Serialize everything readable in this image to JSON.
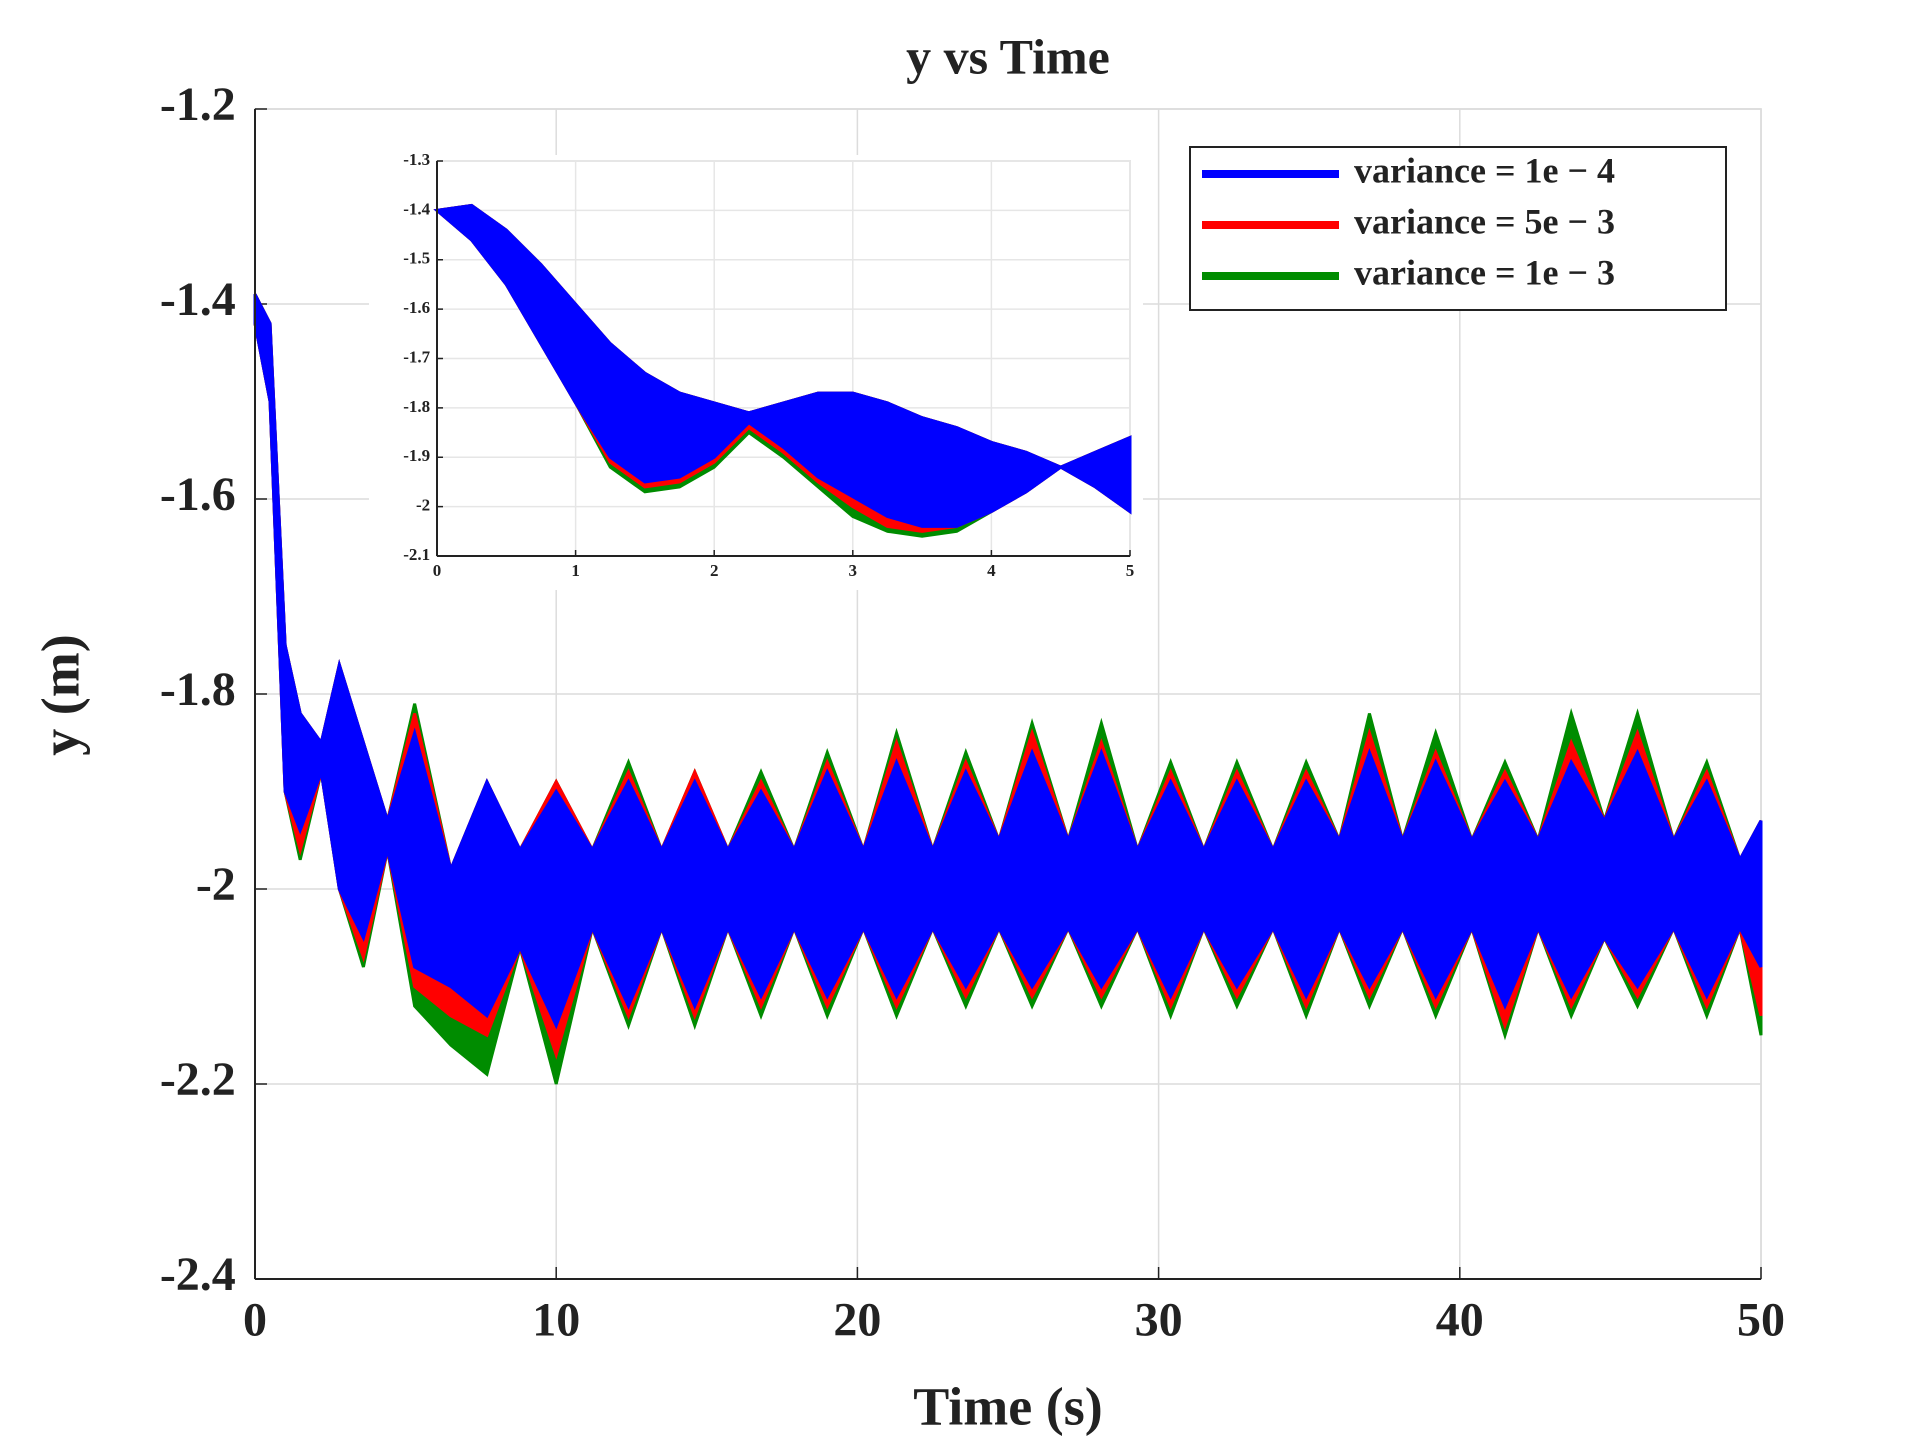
{
  "chart_data": [
    {
      "type": "band",
      "title": "y vs Time",
      "xlabel": "Time (s)",
      "ylabel": "y (m)",
      "xlim": [
        0,
        50
      ],
      "ylim": [
        -2.4,
        -1.2
      ],
      "xticks": [
        0,
        10,
        20,
        30,
        40,
        50
      ],
      "yticks": [
        -2.4,
        -2.2,
        -2,
        -1.8,
        -1.6,
        -1.4,
        -1.2
      ],
      "grid": true,
      "legend": "upper right",
      "x": [
        0,
        0.5,
        1,
        1.5,
        2.2,
        2.8,
        3.6,
        4.4,
        5.3,
        6.5,
        7.7,
        8.8,
        10,
        11.2,
        12.4,
        13.5,
        14.6,
        15.7,
        16.8,
        17.9,
        19,
        20.2,
        21.3,
        22.5,
        23.6,
        24.7,
        25.8,
        27,
        28.1,
        29.3,
        30.4,
        31.5,
        32.6,
        33.8,
        34.9,
        36,
        37,
        38.1,
        39.2,
        40.4,
        41.5,
        42.6,
        43.7,
        44.8,
        45.9,
        47.1,
        48.2,
        49.3,
        50
      ],
      "series": [
        {
          "name": "variance = 1e − 3",
          "color": "#008c00",
          "upper": [
            -1.39,
            -1.42,
            -1.75,
            -1.82,
            -1.85,
            -1.77,
            -1.85,
            -1.93,
            -1.81,
            -1.98,
            -1.89,
            -1.96,
            -1.89,
            -1.96,
            -1.87,
            -1.96,
            -1.88,
            -1.96,
            -1.88,
            -1.96,
            -1.86,
            -1.96,
            -1.84,
            -1.96,
            -1.86,
            -1.95,
            -1.83,
            -1.95,
            -1.83,
            -1.96,
            -1.87,
            -1.96,
            -1.87,
            -1.96,
            -1.87,
            -1.95,
            -1.82,
            -1.95,
            -1.84,
            -1.95,
            -1.87,
            -1.95,
            -1.82,
            -1.93,
            -1.82,
            -1.95,
            -1.87,
            -1.97,
            -1.93
          ],
          "lower": [
            -1.42,
            -1.5,
            -1.9,
            -1.97,
            -1.88,
            -2,
            -2.08,
            -1.96,
            -2.12,
            -2.16,
            -2.19,
            -2.06,
            -2.2,
            -2.04,
            -2.14,
            -2.04,
            -2.14,
            -2.04,
            -2.13,
            -2.04,
            -2.13,
            -2.04,
            -2.13,
            -2.04,
            -2.12,
            -2.04,
            -2.12,
            -2.04,
            -2.12,
            -2.04,
            -2.13,
            -2.04,
            -2.12,
            -2.04,
            -2.13,
            -2.04,
            -2.12,
            -2.04,
            -2.13,
            -2.04,
            -2.15,
            -2.04,
            -2.13,
            -2.05,
            -2.12,
            -2.04,
            -2.13,
            -2.04,
            -2.15
          ]
        },
        {
          "name": "variance = 5e − 3",
          "color": "#ff0000",
          "upper": [
            -1.39,
            -1.42,
            -1.75,
            -1.82,
            -1.85,
            -1.77,
            -1.85,
            -1.93,
            -1.82,
            -1.98,
            -1.89,
            -1.96,
            -1.89,
            -1.96,
            -1.88,
            -1.96,
            -1.88,
            -1.96,
            -1.89,
            -1.96,
            -1.87,
            -1.96,
            -1.85,
            -1.96,
            -1.87,
            -1.95,
            -1.84,
            -1.95,
            -1.85,
            -1.96,
            -1.88,
            -1.96,
            -1.88,
            -1.96,
            -1.88,
            -1.95,
            -1.84,
            -1.95,
            -1.86,
            -1.95,
            -1.88,
            -1.95,
            -1.85,
            -1.93,
            -1.84,
            -1.95,
            -1.88,
            -1.97,
            -1.93
          ],
          "lower": [
            -1.42,
            -1.5,
            -1.9,
            -1.96,
            -1.88,
            -2,
            -2.07,
            -1.96,
            -2.1,
            -2.13,
            -2.15,
            -2.06,
            -2.17,
            -2.04,
            -2.13,
            -2.04,
            -2.13,
            -2.04,
            -2.12,
            -2.04,
            -2.12,
            -2.04,
            -2.12,
            -2.04,
            -2.11,
            -2.04,
            -2.11,
            -2.04,
            -2.11,
            -2.04,
            -2.12,
            -2.04,
            -2.11,
            -2.04,
            -2.12,
            -2.04,
            -2.11,
            -2.04,
            -2.12,
            -2.04,
            -2.14,
            -2.04,
            -2.12,
            -2.05,
            -2.11,
            -2.04,
            -2.12,
            -2.04,
            -2.13
          ]
        },
        {
          "name": "variance = 1e − 4",
          "color": "#0000ff",
          "upper": [
            -1.39,
            -1.42,
            -1.75,
            -1.82,
            -1.85,
            -1.77,
            -1.85,
            -1.93,
            -1.84,
            -1.98,
            -1.89,
            -1.96,
            -1.9,
            -1.96,
            -1.89,
            -1.96,
            -1.89,
            -1.96,
            -1.9,
            -1.96,
            -1.88,
            -1.96,
            -1.87,
            -1.96,
            -1.88,
            -1.95,
            -1.86,
            -1.95,
            -1.86,
            -1.96,
            -1.89,
            -1.96,
            -1.89,
            -1.96,
            -1.89,
            -1.95,
            -1.86,
            -1.95,
            -1.87,
            -1.95,
            -1.89,
            -1.95,
            -1.87,
            -1.93,
            -1.86,
            -1.95,
            -1.89,
            -1.97,
            -1.93
          ],
          "lower": [
            -1.42,
            -1.5,
            -1.9,
            -1.94,
            -1.88,
            -2,
            -2.05,
            -1.96,
            -2.08,
            -2.1,
            -2.13,
            -2.06,
            -2.14,
            -2.04,
            -2.12,
            -2.04,
            -2.12,
            -2.04,
            -2.11,
            -2.04,
            -2.11,
            -2.04,
            -2.11,
            -2.04,
            -2.1,
            -2.04,
            -2.1,
            -2.04,
            -2.1,
            -2.04,
            -2.11,
            -2.04,
            -2.1,
            -2.04,
            -2.11,
            -2.04,
            -2.1,
            -2.04,
            -2.11,
            -2.04,
            -2.12,
            -2.04,
            -2.11,
            -2.05,
            -2.1,
            -2.04,
            -2.11,
            -2.04,
            -2.08
          ]
        }
      ]
    },
    {
      "type": "band",
      "xlim": [
        0,
        5
      ],
      "ylim": [
        -2.1,
        -1.3
      ],
      "xticks": [
        0,
        1,
        2,
        3,
        4,
        5
      ],
      "yticks": [
        -2.1,
        -2,
        -1.9,
        -1.8,
        -1.7,
        -1.6,
        -1.5,
        -1.4,
        -1.3
      ],
      "grid": true,
      "x": [
        0,
        0.25,
        0.5,
        0.75,
        1,
        1.25,
        1.5,
        1.75,
        2,
        2.25,
        2.5,
        2.75,
        3,
        3.25,
        3.5,
        3.75,
        4,
        4.25,
        4.5,
        4.75,
        5
      ],
      "series": [
        {
          "color": "#008c00",
          "upper": [
            -1.4,
            -1.39,
            -1.44,
            -1.51,
            -1.59,
            -1.67,
            -1.73,
            -1.77,
            -1.79,
            -1.81,
            -1.79,
            -1.77,
            -1.77,
            -1.79,
            -1.82,
            -1.84,
            -1.87,
            -1.89,
            -1.92,
            -1.89,
            -1.86
          ],
          "lower": [
            -1.4,
            -1.46,
            -1.55,
            -1.67,
            -1.79,
            -1.92,
            -1.97,
            -1.96,
            -1.92,
            -1.85,
            -1.9,
            -1.96,
            -2.02,
            -2.05,
            -2.06,
            -2.05,
            -2.01,
            -1.97,
            -1.92,
            -1.96,
            -2.01
          ]
        },
        {
          "color": "#ff0000",
          "upper": [
            -1.4,
            -1.39,
            -1.44,
            -1.51,
            -1.59,
            -1.67,
            -1.73,
            -1.77,
            -1.79,
            -1.81,
            -1.79,
            -1.77,
            -1.77,
            -1.79,
            -1.82,
            -1.84,
            -1.87,
            -1.89,
            -1.92,
            -1.89,
            -1.86
          ],
          "lower": [
            -1.4,
            -1.46,
            -1.55,
            -1.67,
            -1.79,
            -1.91,
            -1.96,
            -1.95,
            -1.91,
            -1.84,
            -1.89,
            -1.95,
            -2,
            -2.04,
            -2.05,
            -2.04,
            -2.01,
            -1.97,
            -1.92,
            -1.96,
            -2.01
          ]
        },
        {
          "color": "#0000ff",
          "upper": [
            -1.4,
            -1.39,
            -1.44,
            -1.51,
            -1.59,
            -1.67,
            -1.73,
            -1.77,
            -1.79,
            -1.81,
            -1.79,
            -1.77,
            -1.77,
            -1.79,
            -1.82,
            -1.84,
            -1.87,
            -1.89,
            -1.92,
            -1.89,
            -1.86
          ],
          "lower": [
            -1.4,
            -1.46,
            -1.55,
            -1.67,
            -1.79,
            -1.9,
            -1.95,
            -1.94,
            -1.9,
            -1.83,
            -1.88,
            -1.94,
            -1.98,
            -2.02,
            -2.04,
            -2.04,
            -2.01,
            -1.97,
            -1.92,
            -1.96,
            -2.01
          ]
        }
      ]
    }
  ]
}
